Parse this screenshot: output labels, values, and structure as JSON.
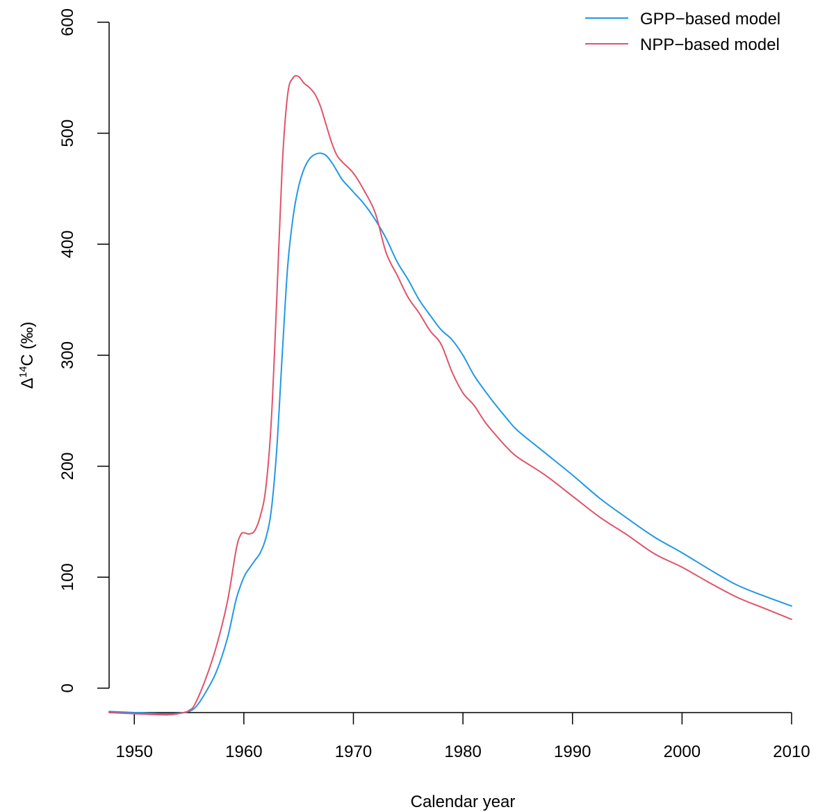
{
  "chart_data": {
    "type": "line",
    "title": "",
    "xlabel": "Calendar year",
    "ylabel_parts": {
      "delta": "Δ",
      "superscript": "14",
      "rest": "C (‰)"
    },
    "xlim": [
      1947.7,
      2010
    ],
    "ylim": [
      -22,
      600
    ],
    "xticks": [
      1950,
      1960,
      1970,
      1980,
      1990,
      2000,
      2010
    ],
    "yticks": [
      0,
      100,
      200,
      300,
      400,
      500,
      600
    ],
    "grid": false,
    "legend_position": "top-right",
    "series": [
      {
        "name": "GPP−based model",
        "color": "#2297E6",
        "x": [
          1947.7,
          1950,
          1953,
          1954.5,
          1955.5,
          1956.5,
          1957.5,
          1958.5,
          1959.3,
          1960,
          1960.5,
          1961,
          1961.5,
          1962,
          1962.5,
          1963,
          1963.5,
          1964,
          1964.5,
          1965,
          1965.5,
          1966,
          1966.5,
          1967,
          1967.5,
          1968,
          1968.5,
          1969,
          1970,
          1971,
          1972,
          1973,
          1974,
          1975,
          1976,
          1977,
          1978,
          1979,
          1980,
          1981,
          1982,
          1983,
          1984,
          1985,
          1987.5,
          1990,
          1992.5,
          1995,
          1997.5,
          2000,
          2002.5,
          2005,
          2007.5,
          2010
        ],
        "y": [
          -21,
          -22,
          -23,
          -22,
          -18,
          -4,
          15,
          45,
          80,
          100,
          108,
          115,
          122,
          135,
          160,
          215,
          300,
          380,
          425,
          452,
          468,
          477,
          481,
          482,
          480,
          474,
          466,
          458,
          447,
          436,
          422,
          405,
          384,
          368,
          350,
          336,
          323,
          314,
          300,
          282,
          268,
          255,
          243,
          232,
          212,
          192,
          171,
          153,
          136,
          122,
          107,
          93,
          83,
          74
        ]
      },
      {
        "name": "NPP−based model",
        "color": "#DF536B",
        "x": [
          1947.7,
          1950,
          1953,
          1954.5,
          1955,
          1955.5,
          1956.5,
          1957.5,
          1958.5,
          1959.3,
          1959.7,
          1960,
          1960.5,
          1961,
          1961.5,
          1962,
          1962.5,
          1963,
          1963.5,
          1964,
          1964.5,
          1965,
          1965.5,
          1966,
          1966.5,
          1967,
          1967.5,
          1968,
          1968.5,
          1969,
          1970,
          1971,
          1972,
          1973,
          1974,
          1975,
          1976,
          1977,
          1978,
          1979,
          1980,
          1981,
          1982,
          1983,
          1984,
          1985,
          1987.5,
          1990,
          1992.5,
          1995,
          1997.5,
          2000,
          2002.5,
          2005,
          2007.5,
          2010
        ],
        "y": [
          -22,
          -23,
          -24,
          -22,
          -20,
          -15,
          8,
          38,
          78,
          125,
          138,
          140,
          139,
          142,
          155,
          180,
          240,
          350,
          470,
          535,
          550,
          551,
          545,
          541,
          535,
          524,
          508,
          492,
          480,
          474,
          464,
          448,
          428,
          392,
          372,
          352,
          338,
          322,
          310,
          285,
          266,
          255,
          240,
          228,
          217,
          208,
          192,
          173,
          154,
          138,
          121,
          109,
          95,
          82,
          72,
          62
        ]
      }
    ]
  }
}
